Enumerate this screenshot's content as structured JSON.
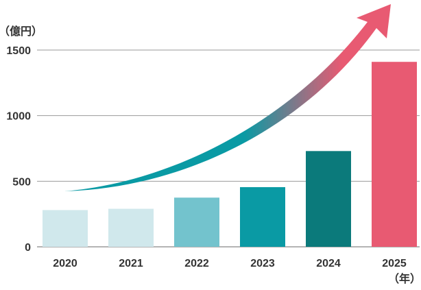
{
  "chart_data": {
    "type": "bar",
    "categories": [
      "2020",
      "2021",
      "2022",
      "2023",
      "2024",
      "2025"
    ],
    "values": [
      280,
      290,
      375,
      455,
      730,
      1410
    ],
    "bar_colors": [
      "#d0e8ec",
      "#d0e8ec",
      "#73c3cd",
      "#0a9aa4",
      "#0b7a7b",
      "#e85a72"
    ],
    "yticks": [
      0,
      500,
      1000,
      1500
    ],
    "ylim": [
      0,
      1500
    ],
    "y_unit": "（億円）",
    "x_unit": "（年）",
    "grid": true,
    "trend_arrow": {
      "color_start": "#0a9aa4",
      "color_end": "#e85a72"
    }
  }
}
